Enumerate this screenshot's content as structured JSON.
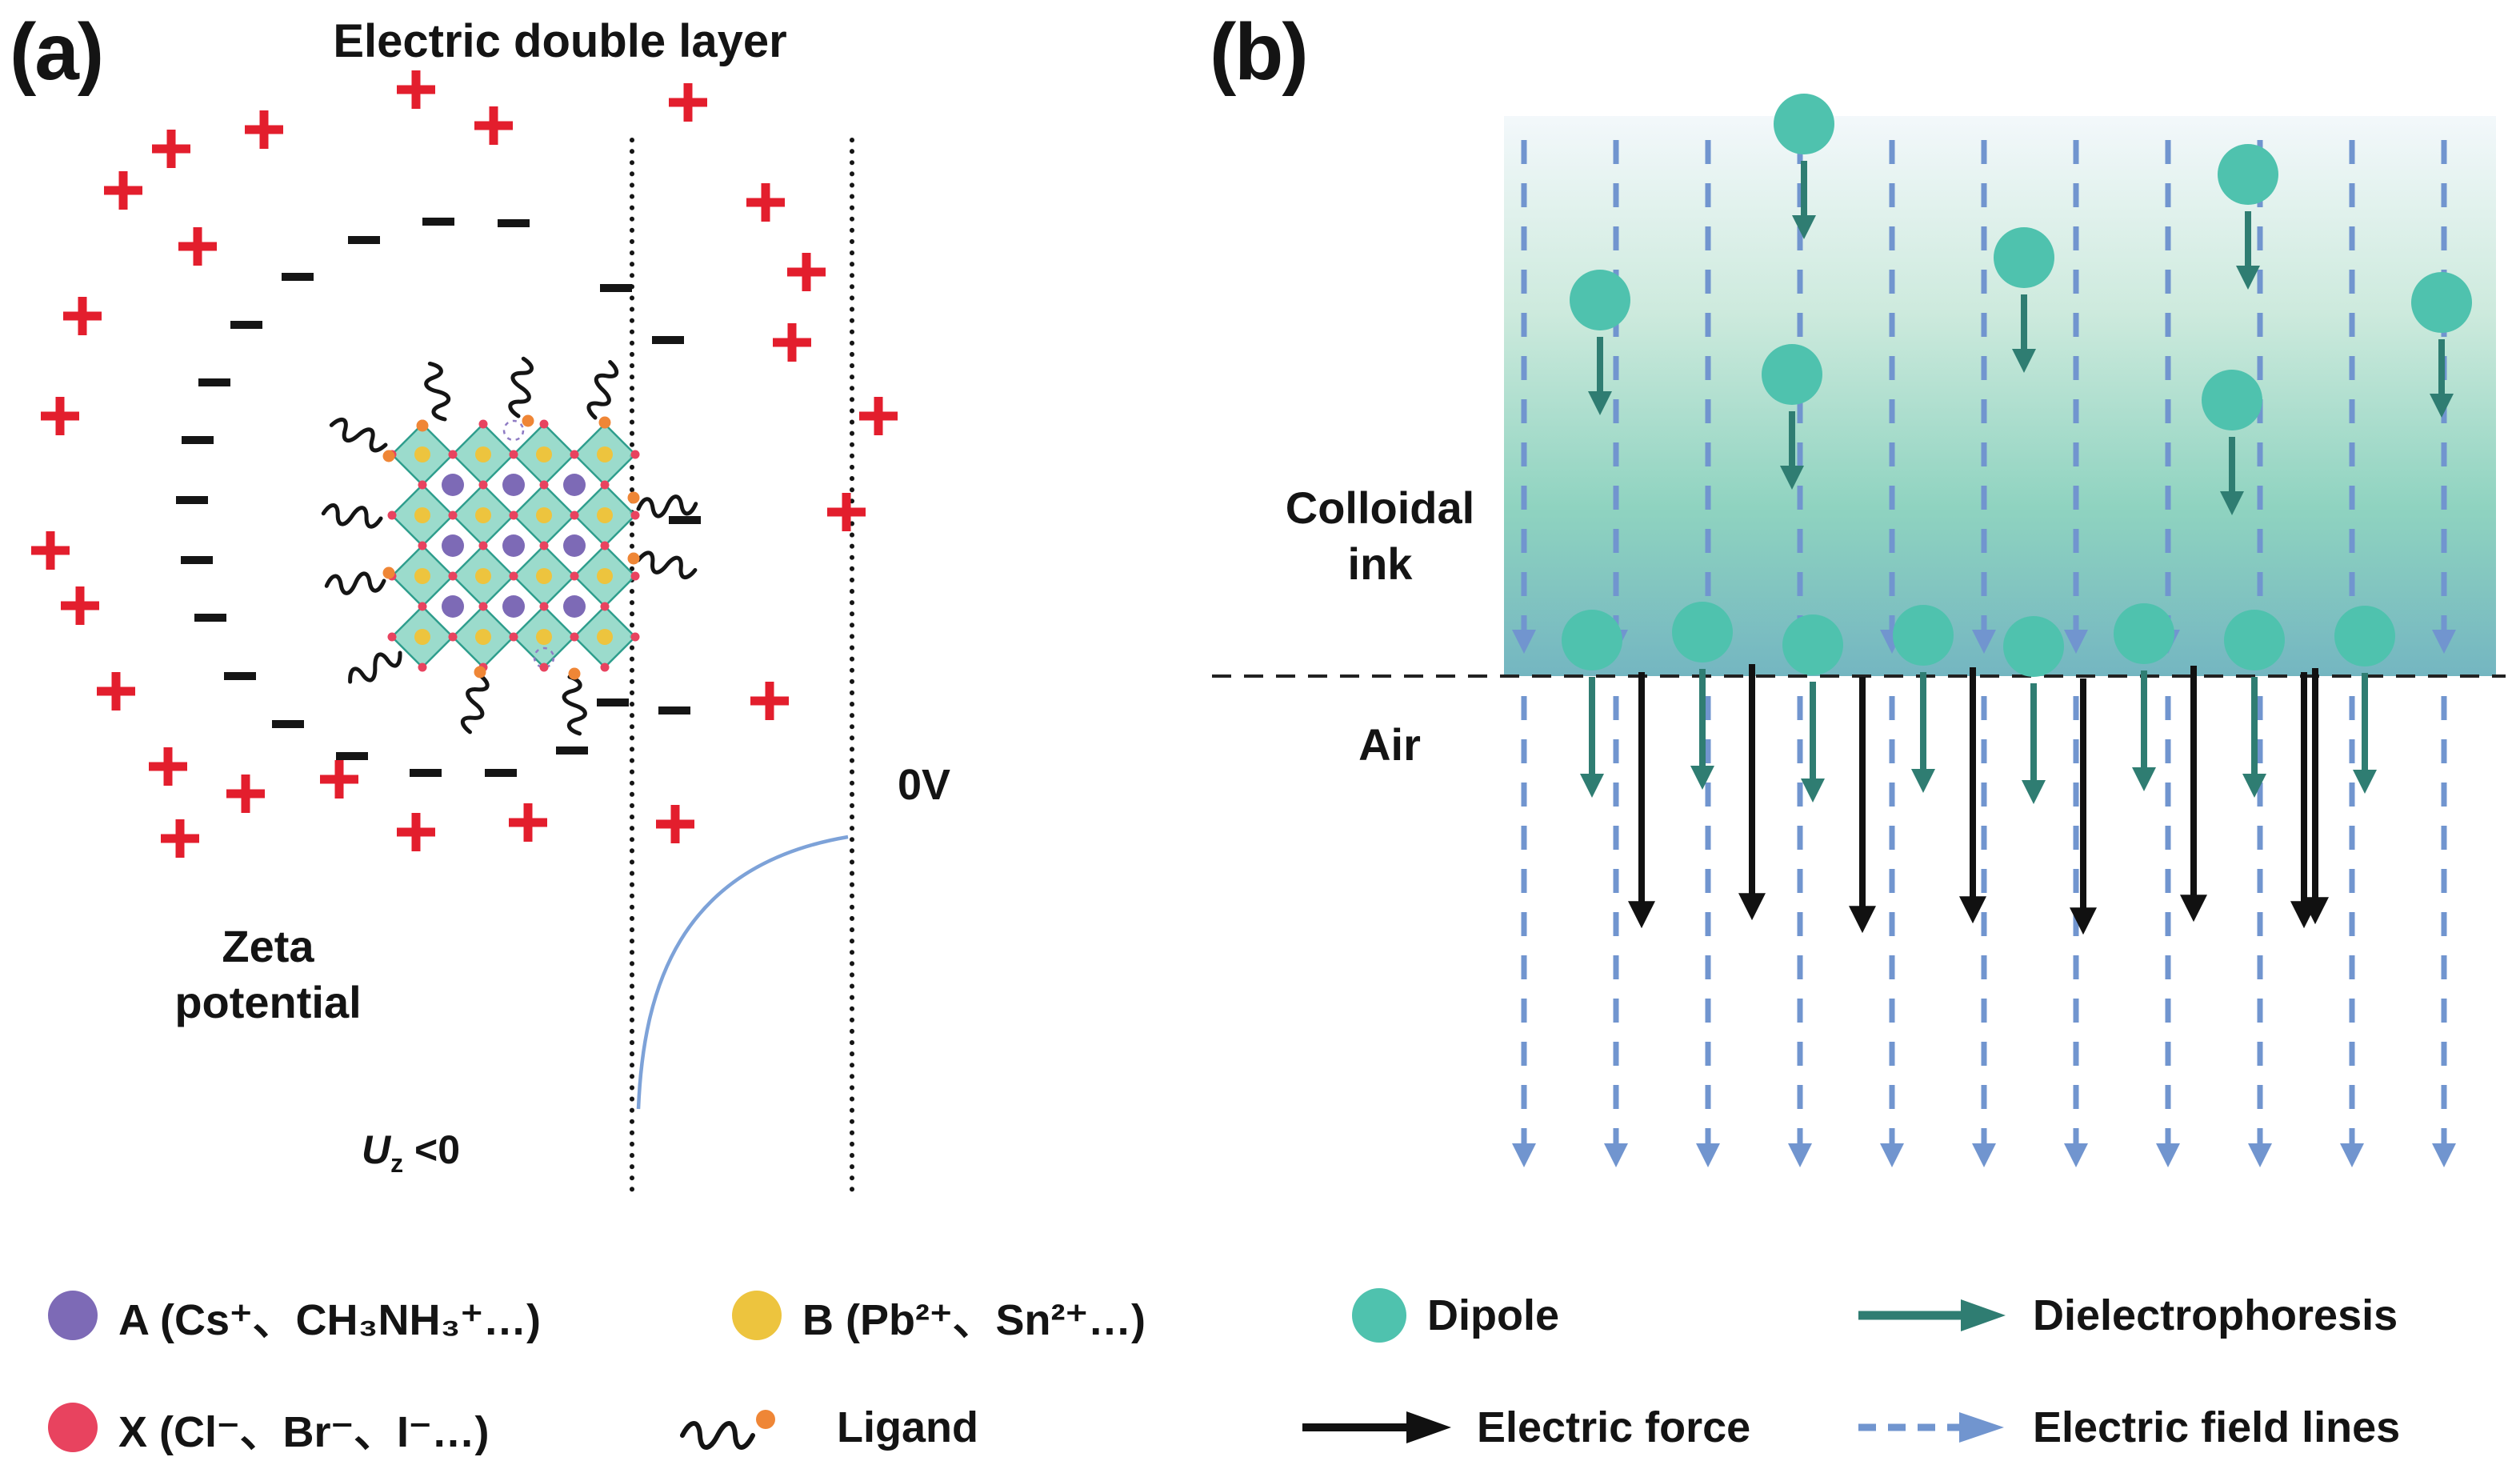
{
  "panel_a": {
    "label": "(a)",
    "title": "Electric double layer",
    "zeta_potential_line1": "Zeta",
    "zeta_potential_line2": "potential",
    "zero_volt_label": "0V",
    "uz_symbol": "U",
    "uz_subscript": "z",
    "uz_condition": " <0"
  },
  "panel_b": {
    "label": "(b)",
    "colloidal_ink_line1": "Colloidal",
    "colloidal_ink_line2": "ink",
    "air_label": "Air"
  },
  "legend": {
    "items": [
      {
        "id": "a-site",
        "label": "A (Cs⁺、CH₃NH₃⁺…)"
      },
      {
        "id": "b-site",
        "label": "B (Pb²⁺、Sn²⁺…)"
      },
      {
        "id": "dipole",
        "label": "Dipole"
      },
      {
        "id": "dielectrophoresis",
        "label": "Dielectrophoresis"
      },
      {
        "id": "x-site",
        "label": "X (Cl⁻、Br⁻、I⁻…)"
      },
      {
        "id": "ligand",
        "label": "Ligand"
      },
      {
        "id": "electric-force",
        "label": "Electric force"
      },
      {
        "id": "electric-field-lines",
        "label": "Electric field lines"
      }
    ]
  },
  "colors": {
    "positive_charge_red": "#e31e2d",
    "negative_charge_black": "#151515",
    "crystal_teal": "#8dd6c5",
    "crystal_edge_teal": "#2f9e8d",
    "a_site_purple": "#7d6ab6",
    "b_site_yellow": "#edc43e",
    "x_site_red": "#e8435f",
    "ligand_orange": "#ef8636",
    "dipole_teal": "#4fc2ae",
    "dielectrophoresis_teal": "#2f7d72",
    "electric_force_black": "#111111",
    "field_line_blue": "#7195cf",
    "zeta_curve_blue": "#7da2d8"
  }
}
